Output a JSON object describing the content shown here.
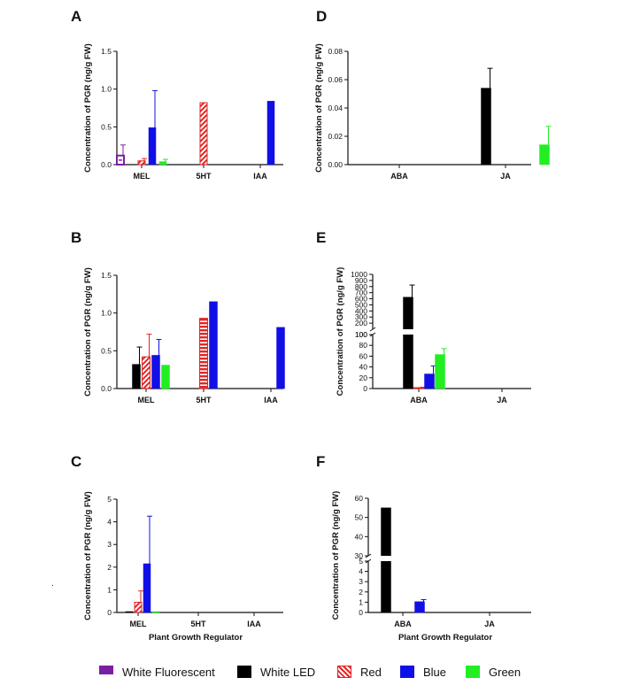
{
  "figure": {
    "shared_ylabel": "Concentration of PGR (ng/g FW)",
    "shared_xlabel": "Plant Growth Regulator",
    "stray_mark": "."
  },
  "series_styles": [
    {
      "name": "White Fluorescent",
      "color": "#7b1fa2",
      "pattern": "fluorescent"
    },
    {
      "name": "White LED",
      "color": "#000000",
      "pattern": "solid"
    },
    {
      "name": "Red",
      "color": "#e32626",
      "pattern": "hatch"
    },
    {
      "name": "Blue",
      "color": "#1010e6",
      "pattern": "solid"
    },
    {
      "name": "Green",
      "color": "#22ee22",
      "pattern": "solid"
    }
  ],
  "legend": {
    "items": [
      {
        "label": "White Fluorescent"
      },
      {
        "label": "White LED"
      },
      {
        "label": "Red"
      },
      {
        "label": "Blue"
      },
      {
        "label": "Green"
      }
    ]
  },
  "chart_data": [
    {
      "panel": "A",
      "type": "bar",
      "categories": [
        "MEL",
        "5HT",
        "IAA"
      ],
      "ylabel": "Concentration of PGR (ng/g FW)",
      "xlabel": "",
      "ylim": [
        0,
        1.5
      ],
      "yticks": [
        "0.0",
        "0.5",
        "1.0",
        "1.5"
      ],
      "series": [
        {
          "name": "White Fluorescent",
          "values": [
            0.12,
            0,
            0
          ],
          "errors": [
            0.14,
            0,
            0
          ]
        },
        {
          "name": "White LED",
          "values": [
            0,
            0,
            0
          ],
          "errors": [
            0,
            0,
            0
          ]
        },
        {
          "name": "Red",
          "values": [
            0.05,
            0.82,
            0
          ],
          "errors": [
            0.03,
            0,
            0
          ]
        },
        {
          "name": "Blue",
          "values": [
            0.49,
            0,
            0.84
          ],
          "errors": [
            0.49,
            0,
            0
          ]
        },
        {
          "name": "Green",
          "values": [
            0.04,
            0,
            0
          ],
          "errors": [
            0.03,
            0,
            0
          ]
        }
      ]
    },
    {
      "panel": "D",
      "type": "bar",
      "categories": [
        "ABA",
        "JA"
      ],
      "ylabel": "Concentration of PGR (ng/g FW)",
      "xlabel": "",
      "ylim": [
        0,
        0.08
      ],
      "yticks": [
        "0.00",
        "0.02",
        "0.04",
        "0.06",
        "0.08"
      ],
      "series": [
        {
          "name": "White Fluorescent",
          "values": [
            0,
            0
          ],
          "errors": [
            0,
            0
          ]
        },
        {
          "name": "White LED",
          "values": [
            0,
            0.054
          ],
          "errors": [
            0,
            0.014
          ]
        },
        {
          "name": "Red",
          "values": [
            0,
            0
          ],
          "errors": [
            0,
            0
          ]
        },
        {
          "name": "Blue",
          "values": [
            0,
            0
          ],
          "errors": [
            0,
            0
          ]
        },
        {
          "name": "Green",
          "values": [
            0,
            0.014
          ],
          "errors": [
            0,
            0.013
          ]
        }
      ]
    },
    {
      "panel": "B",
      "type": "bar",
      "categories": [
        "MEL",
        "5HT",
        "IAA"
      ],
      "ylabel": "Concentration of PGR (ng/g FW)",
      "xlabel": "",
      "ylim": [
        0,
        1.5
      ],
      "yticks": [
        "0.0",
        "0.5",
        "1.0",
        "1.5"
      ],
      "series": [
        {
          "name": "White Fluorescent",
          "values": [
            0,
            0,
            0
          ],
          "errors": [
            0,
            0,
            0
          ]
        },
        {
          "name": "White LED",
          "values": [
            0.32,
            0,
            0
          ],
          "errors": [
            0.23,
            0,
            0
          ]
        },
        {
          "name": "Red",
          "values": [
            0.42,
            0.93,
            0
          ],
          "errors": [
            0.3,
            0,
            0
          ]
        },
        {
          "name": "Blue",
          "values": [
            0.44,
            1.15,
            0.81
          ],
          "errors": [
            0.21,
            0,
            0
          ]
        },
        {
          "name": "Green",
          "values": [
            0.31,
            0,
            0
          ],
          "errors": [
            0,
            0,
            0
          ]
        }
      ]
    },
    {
      "panel": "E",
      "type": "bar",
      "categories": [
        "ABA",
        "JA"
      ],
      "ylabel": "Concentration of PGR (ng/g FW)",
      "xlabel": "",
      "broken_axis": {
        "lower": [
          0,
          100
        ],
        "upper": [
          100,
          1000
        ]
      },
      "yticks_lower": [
        "0",
        "20",
        "40",
        "60",
        "80",
        "100"
      ],
      "yticks_upper": [
        "100",
        "200",
        "300",
        "400",
        "500",
        "600",
        "700",
        "800",
        "900",
        "1000"
      ],
      "series": [
        {
          "name": "White Fluorescent",
          "values": [
            0,
            0
          ],
          "errors": [
            0,
            0
          ]
        },
        {
          "name": "White LED",
          "values": [
            625,
            0
          ],
          "errors": [
            200,
            0
          ]
        },
        {
          "name": "Red",
          "values": [
            1.5,
            0
          ],
          "errors": [
            1.0,
            0
          ]
        },
        {
          "name": "Blue",
          "values": [
            27,
            0
          ],
          "errors": [
            15,
            0
          ]
        },
        {
          "name": "Green",
          "values": [
            63,
            0
          ],
          "errors": [
            11,
            0
          ]
        }
      ]
    },
    {
      "panel": "C",
      "type": "bar",
      "categories": [
        "MEL",
        "5HT",
        "IAA"
      ],
      "ylabel": "Concentration of PGR (ng/g FW)",
      "xlabel": "Plant Growth Regulator",
      "ylim": [
        0,
        5
      ],
      "yticks": [
        "0",
        "1",
        "2",
        "3",
        "4",
        "5"
      ],
      "series": [
        {
          "name": "White Fluorescent",
          "values": [
            0,
            0,
            0
          ],
          "errors": [
            0,
            0,
            0
          ]
        },
        {
          "name": "White LED",
          "values": [
            0.03,
            0,
            0
          ],
          "errors": [
            0,
            0,
            0
          ]
        },
        {
          "name": "Red",
          "values": [
            0.45,
            0,
            0
          ],
          "errors": [
            0.5,
            0,
            0
          ]
        },
        {
          "name": "Blue",
          "values": [
            2.15,
            0,
            0
          ],
          "errors": [
            2.1,
            0,
            0
          ]
        },
        {
          "name": "Green",
          "values": [
            0.02,
            0,
            0
          ],
          "errors": [
            0,
            0,
            0
          ]
        }
      ]
    },
    {
      "panel": "F",
      "type": "bar",
      "categories": [
        "ABA",
        "JA"
      ],
      "ylabel": "Concentration of PGR (ng/g FW)",
      "xlabel": "Plant Growth Regulator",
      "broken_axis": {
        "lower": [
          0,
          5
        ],
        "upper": [
          30,
          60
        ]
      },
      "yticks_lower": [
        "0",
        "1",
        "2",
        "3",
        "4",
        "5"
      ],
      "yticks_upper": [
        "30",
        "40",
        "50",
        "60"
      ],
      "series": [
        {
          "name": "White Fluorescent",
          "values": [
            0,
            0
          ],
          "errors": [
            0,
            0
          ]
        },
        {
          "name": "White LED",
          "values": [
            55,
            0
          ],
          "errors": [
            0,
            0
          ]
        },
        {
          "name": "Red",
          "values": [
            0,
            0
          ],
          "errors": [
            0,
            0
          ]
        },
        {
          "name": "Blue",
          "values": [
            1.05,
            0
          ],
          "errors": [
            0.2,
            0
          ]
        },
        {
          "name": "Green",
          "values": [
            0,
            0
          ],
          "errors": [
            0,
            0
          ]
        }
      ]
    }
  ]
}
